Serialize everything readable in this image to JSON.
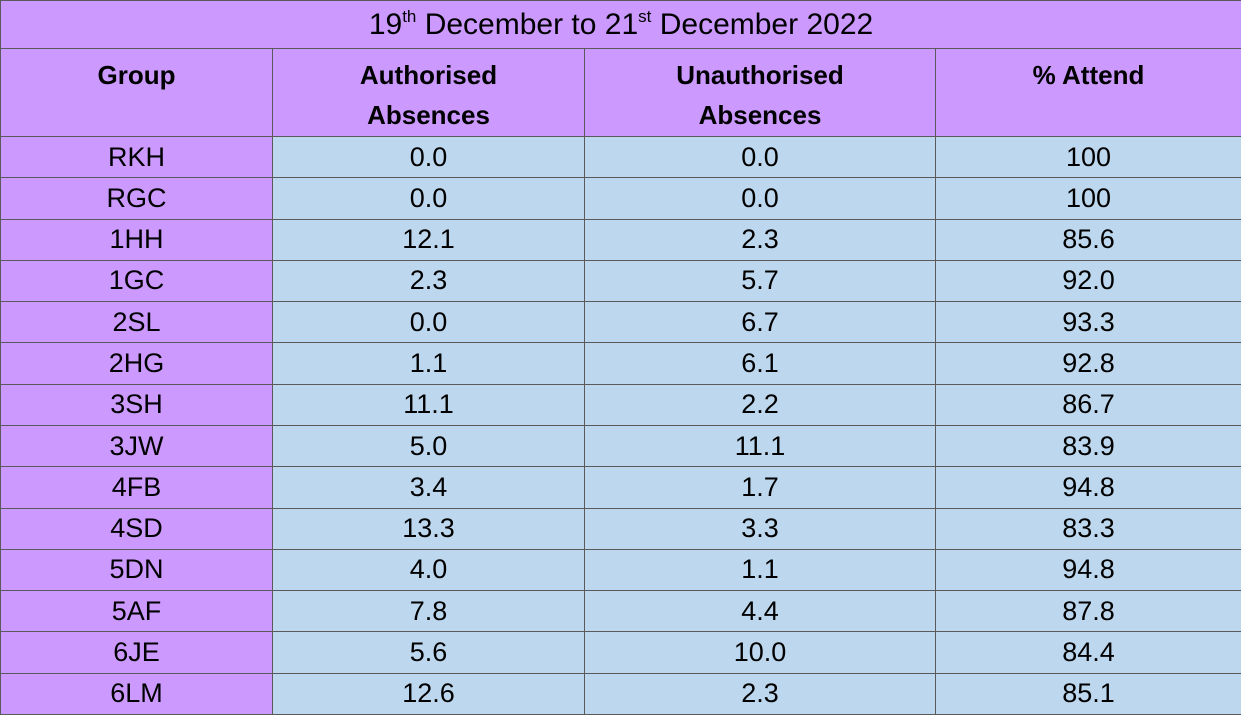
{
  "table": {
    "title": [
      "19",
      "th",
      " December to 21",
      "st",
      " December 2022"
    ],
    "header": [
      "Group",
      "Authorised Absences",
      "Unauthorised Absences",
      "% Attend"
    ],
    "rows": [
      [
        "RKH",
        "0.0",
        "0.0",
        "100"
      ],
      [
        "RGC",
        "0.0",
        "0.0",
        "100"
      ],
      [
        "1HH",
        "12.1",
        "2.3",
        "85.6"
      ],
      [
        "1GC",
        "2.3",
        "5.7",
        "92.0"
      ],
      [
        "2SL",
        "0.0",
        "6.7",
        "93.3"
      ],
      [
        "2HG",
        "1.1",
        "6.1",
        "92.8"
      ],
      [
        "3SH",
        "11.1",
        "2.2",
        "86.7"
      ],
      [
        "3JW",
        "5.0",
        "11.1",
        "83.9"
      ],
      [
        "4FB",
        "3.4",
        "1.7",
        "94.8"
      ],
      [
        "4SD",
        "13.3",
        "3.3",
        "83.3"
      ],
      [
        "5DN",
        "4.0",
        "1.1",
        "94.8"
      ],
      [
        "5AF",
        "7.8",
        "4.4",
        "87.8"
      ],
      [
        "6JE",
        "5.6",
        "10.0",
        "84.4"
      ],
      [
        "6LM",
        "12.6",
        "2.3",
        "85.1"
      ]
    ]
  }
}
